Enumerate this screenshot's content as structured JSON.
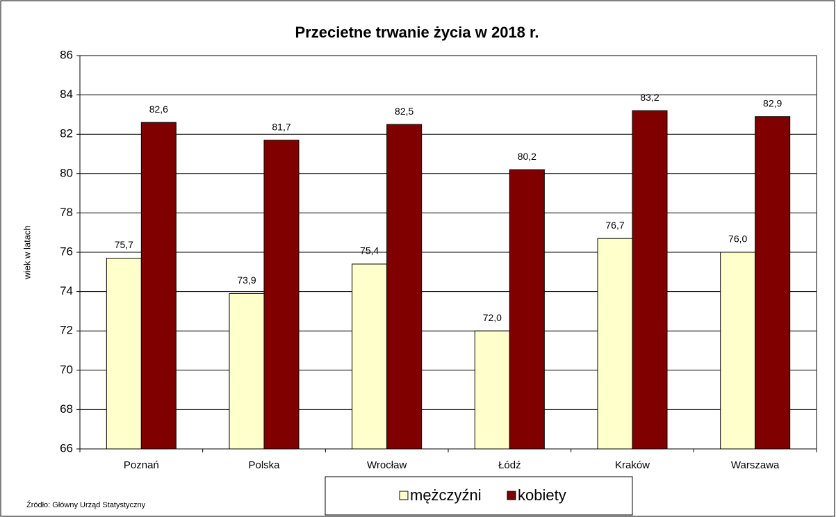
{
  "chart_data": {
    "type": "bar",
    "title": "Przecietne trwanie życia w 2018 r.",
    "y_label": "wiek w latach",
    "source": "Źródło: Główny Urząd Statystyczny",
    "categories": [
      "Poznań",
      "Polska",
      "Wrocław",
      "Łódź",
      "Kraków",
      "Warszawa"
    ],
    "series": [
      {
        "name": "mężczyźni",
        "color": "#ffffcc",
        "values": [
          75.7,
          73.9,
          75.4,
          72.0,
          76.7,
          76.0
        ],
        "value_labels": [
          "75,7",
          "73,9",
          "75,4",
          "72,0",
          "76,7",
          "76,0"
        ]
      },
      {
        "name": "kobiety",
        "color": "#800000",
        "values": [
          82.6,
          81.7,
          82.5,
          80.2,
          83.2,
          82.9
        ],
        "value_labels": [
          "82,6",
          "81,7",
          "82,5",
          "80,2",
          "83,2",
          "82,9"
        ]
      }
    ],
    "ylim": [
      66,
      86
    ],
    "yticks": [
      66,
      68,
      70,
      72,
      74,
      76,
      78,
      80,
      82,
      84,
      86
    ],
    "grid": true,
    "legend": "bottom"
  }
}
